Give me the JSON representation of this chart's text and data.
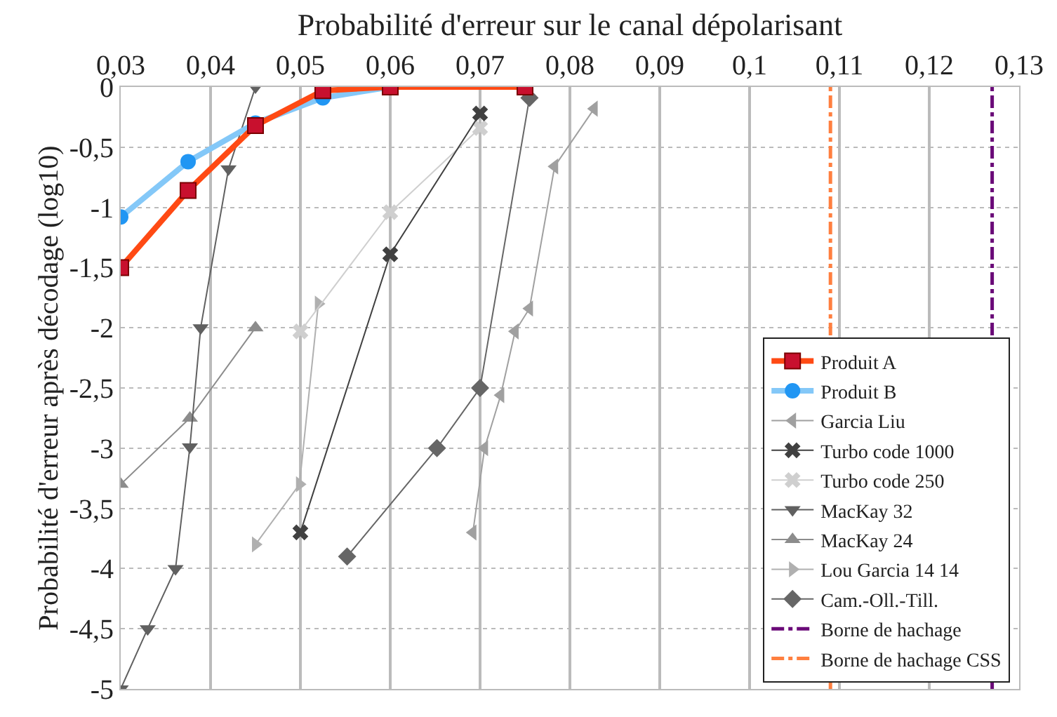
{
  "chart_data": {
    "type": "line",
    "xlabel": "Probabilité d'erreur sur le canal dépolarisant",
    "ylabel": "Probabilité d'erreur après décodage (log10)",
    "xlim": [
      0.03,
      0.13
    ],
    "xticks": [
      {
        "value": 0.03,
        "label": "0,03"
      },
      {
        "value": 0.04,
        "label": "0,04"
      },
      {
        "value": 0.05,
        "label": "0,05"
      },
      {
        "value": 0.06,
        "label": "0,06"
      },
      {
        "value": 0.07,
        "label": "0,07"
      },
      {
        "value": 0.08,
        "label": "0,08"
      },
      {
        "value": 0.09,
        "label": "0,09"
      },
      {
        "value": 0.1,
        "label": "0,1"
      },
      {
        "value": 0.11,
        "label": "0,11"
      },
      {
        "value": 0.12,
        "label": "0,12"
      },
      {
        "value": 0.13,
        "label": "0,13"
      }
    ],
    "ylim": [
      -5,
      0
    ],
    "yticks": [
      0,
      {
        "value": -0.5,
        "label": "-0,5"
      },
      -1,
      {
        "value": -1.5,
        "label": "-1,5"
      },
      -2,
      {
        "value": -2.5,
        "label": "-2,5"
      },
      -3,
      {
        "value": -3.5,
        "label": "-3,5"
      },
      -4,
      {
        "value": -4.5,
        "label": "-4,5"
      },
      -5
    ],
    "grid": true,
    "legend": "bottom right",
    "line_style": "solid",
    "series": [
      {
        "name": "Produit A",
        "color": "#ff4a14",
        "marker": "square",
        "x": [
          0.03,
          0.0375,
          0.045,
          0.0525,
          0.06,
          0.075
        ],
        "values": [
          -1.5,
          -0.86,
          -0.32,
          -0.03,
          0,
          0
        ]
      },
      {
        "name": "Produit B",
        "color": "#84c8f8",
        "marker": "circle",
        "x": [
          0.03,
          0.0375,
          0.045,
          0.0525,
          0.06,
          0.075
        ],
        "values": [
          -1.08,
          -0.62,
          -0.3,
          -0.09,
          0,
          0
        ]
      },
      {
        "name": "Garcia Liu",
        "color": "#a0a0a0",
        "marker": "triangle-left",
        "x": [
          0.0827,
          0.0783,
          0.0755,
          0.0739,
          0.0723,
          0.0705,
          0.0692
        ],
        "values": [
          -0.18,
          -0.66,
          -1.84,
          -2.03,
          -2.56,
          -3,
          -3.7
        ]
      },
      {
        "name": "Turbo code 1000",
        "color": "#404040",
        "marker": "cross",
        "x": [
          0.07,
          0.06,
          0.05
        ],
        "values": [
          -0.22,
          -1.39,
          -3.7
        ]
      },
      {
        "name": "Turbo code 250",
        "color": "#cfcfcf",
        "marker": "cross",
        "x": [
          0.07,
          0.06,
          0.05
        ],
        "values": [
          -0.34,
          -1.04,
          -2.03
        ]
      },
      {
        "name": "MacKay 32",
        "color": "#606060",
        "marker": "triangle-down",
        "x": [
          0.045,
          0.042,
          0.0389,
          0.0377,
          0.0361,
          0.033,
          0.03
        ],
        "values": [
          0,
          -0.68,
          -2,
          -2.99,
          -4,
          -4.5,
          -5
        ]
      },
      {
        "name": "MacKay 24",
        "color": "#8c8c8c",
        "marker": "triangle",
        "x": [
          0.045,
          0.0377,
          0.03
        ],
        "values": [
          -2,
          -2.75,
          -3.3
        ]
      },
      {
        "name": "Lou Garcia 14 14",
        "color": "#b0b0b0",
        "marker": "triangle-right",
        "x": [
          0.052,
          0.0499,
          0.045
        ],
        "values": [
          -1.8,
          -3.3,
          -3.8
        ]
      },
      {
        "name": "Cam.-Oll.-Till.",
        "color": "#666666",
        "marker": "diamond",
        "x": [
          0.0755,
          0.07,
          0.0652,
          0.0552
        ],
        "values": [
          -0.09,
          -2.5,
          -3,
          -3.9
        ]
      }
    ],
    "ref_lines": [
      {
        "axis": "x",
        "value": 0.127,
        "label": "Borne de hachage",
        "color": "#6a0a78",
        "line_style": "dashed"
      },
      {
        "axis": "x",
        "value": 0.109,
        "label": "Borne de hachage CSS",
        "color": "#ff7f3f",
        "line_style": "dashed"
      }
    ]
  }
}
